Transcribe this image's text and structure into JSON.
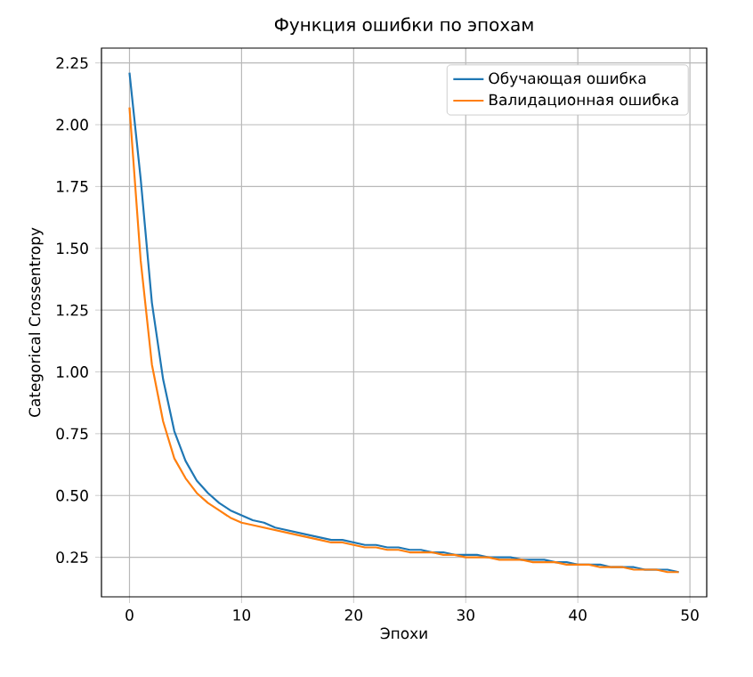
{
  "chart_data": {
    "type": "line",
    "title": "Функция ошибки по эпохам",
    "xlabel": "Эпохи",
    "ylabel": "Categorical Crossentropy",
    "x": [
      0,
      1,
      2,
      3,
      4,
      5,
      6,
      7,
      8,
      9,
      10,
      11,
      12,
      13,
      14,
      15,
      16,
      17,
      18,
      19,
      20,
      21,
      22,
      23,
      24,
      25,
      26,
      27,
      28,
      29,
      30,
      31,
      32,
      33,
      34,
      35,
      36,
      37,
      38,
      39,
      40,
      41,
      42,
      43,
      44,
      45,
      46,
      47,
      48,
      49
    ],
    "series": [
      {
        "name": "Обучающая ошибка",
        "color": "#1f77b4",
        "values": [
          2.21,
          1.78,
          1.28,
          0.97,
          0.76,
          0.64,
          0.56,
          0.51,
          0.47,
          0.44,
          0.42,
          0.4,
          0.39,
          0.37,
          0.36,
          0.35,
          0.34,
          0.33,
          0.32,
          0.32,
          0.31,
          0.3,
          0.3,
          0.29,
          0.29,
          0.28,
          0.28,
          0.27,
          0.27,
          0.26,
          0.26,
          0.26,
          0.25,
          0.25,
          0.25,
          0.24,
          0.24,
          0.24,
          0.23,
          0.23,
          0.22,
          0.22,
          0.22,
          0.21,
          0.21,
          0.21,
          0.2,
          0.2,
          0.2,
          0.19
        ]
      },
      {
        "name": "Валидационная ошибка",
        "color": "#ff7f0e",
        "values": [
          2.07,
          1.45,
          1.03,
          0.8,
          0.65,
          0.57,
          0.51,
          0.47,
          0.44,
          0.41,
          0.39,
          0.38,
          0.37,
          0.36,
          0.35,
          0.34,
          0.33,
          0.32,
          0.31,
          0.31,
          0.3,
          0.29,
          0.29,
          0.28,
          0.28,
          0.27,
          0.27,
          0.27,
          0.26,
          0.26,
          0.25,
          0.25,
          0.25,
          0.24,
          0.24,
          0.24,
          0.23,
          0.23,
          0.23,
          0.22,
          0.22,
          0.22,
          0.21,
          0.21,
          0.21,
          0.2,
          0.2,
          0.2,
          0.19,
          0.19
        ]
      }
    ],
    "xlim": [
      -2.5,
      51.5
    ],
    "ylim": [
      0.09,
      2.31
    ],
    "xticks": [
      0,
      10,
      20,
      30,
      40,
      50
    ],
    "yticks": [
      {
        "value": 0.25,
        "label": "0.25"
      },
      {
        "value": 0.5,
        "label": "0.50"
      },
      {
        "value": 0.75,
        "label": "0.75"
      },
      {
        "value": 1.0,
        "label": "1.00"
      },
      {
        "value": 1.25,
        "label": "1.25"
      },
      {
        "value": 1.5,
        "label": "1.50"
      },
      {
        "value": 1.75,
        "label": "1.75"
      },
      {
        "value": 2.0,
        "label": "2.00"
      },
      {
        "value": 2.25,
        "label": "2.25"
      }
    ],
    "grid": true,
    "legend": "top right",
    "line_style": "solid",
    "marker": "none"
  }
}
